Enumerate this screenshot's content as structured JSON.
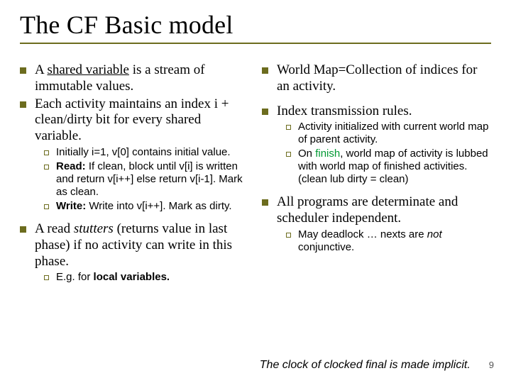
{
  "colors": {
    "bullet_fill": "#6c6c1e",
    "rule": "#6c6c1e",
    "finish_green": "#009933",
    "text": "#000000",
    "bg": "#ffffff"
  },
  "title": "The CF Basic model",
  "left": {
    "b1a_pre": "A ",
    "b1a_u": "shared variable",
    "b1a_post": " is a stream of immutable values.",
    "b1b": "Each activity maintains an index i + clean/dirty bit for every shared variable.",
    "b2a": "Initially i=1, v[0] contains initial value.",
    "b2b_label": "Read:",
    "b2b_rest": " If clean, block until v[i] is written and return v[i++] else return v[i-1]. Mark as clean.",
    "b2c_label": "Write:",
    "b2c_rest": " Write into v[i++]. Mark as dirty.",
    "b1c_pre": "A read ",
    "b1c_i": "stutters",
    "b1c_post": " (returns value in last phase) if no activity can write in this phase.",
    "b2d_pre": "E.g. for ",
    "b2d_b": "local variables."
  },
  "right": {
    "b1a": "World Map=Collection of indices for an activity.",
    "b1b": "Index transmission rules.",
    "b2a": "Activity  initialized with current world map of parent activity.",
    "b2b_pre": "On ",
    "b2b_green": "finish",
    "b2b_post": ", world map of activity is lubbed with world map of finished activities. (clean lub dirty = clean)",
    "b1c": "All programs are determinate and scheduler independent.",
    "b2c_pre": "May deadlock … nexts are ",
    "b2c_i": "not",
    "b2c_post": " conjunctive."
  },
  "footer": "The clock of clocked final is made implicit.",
  "page": "9"
}
